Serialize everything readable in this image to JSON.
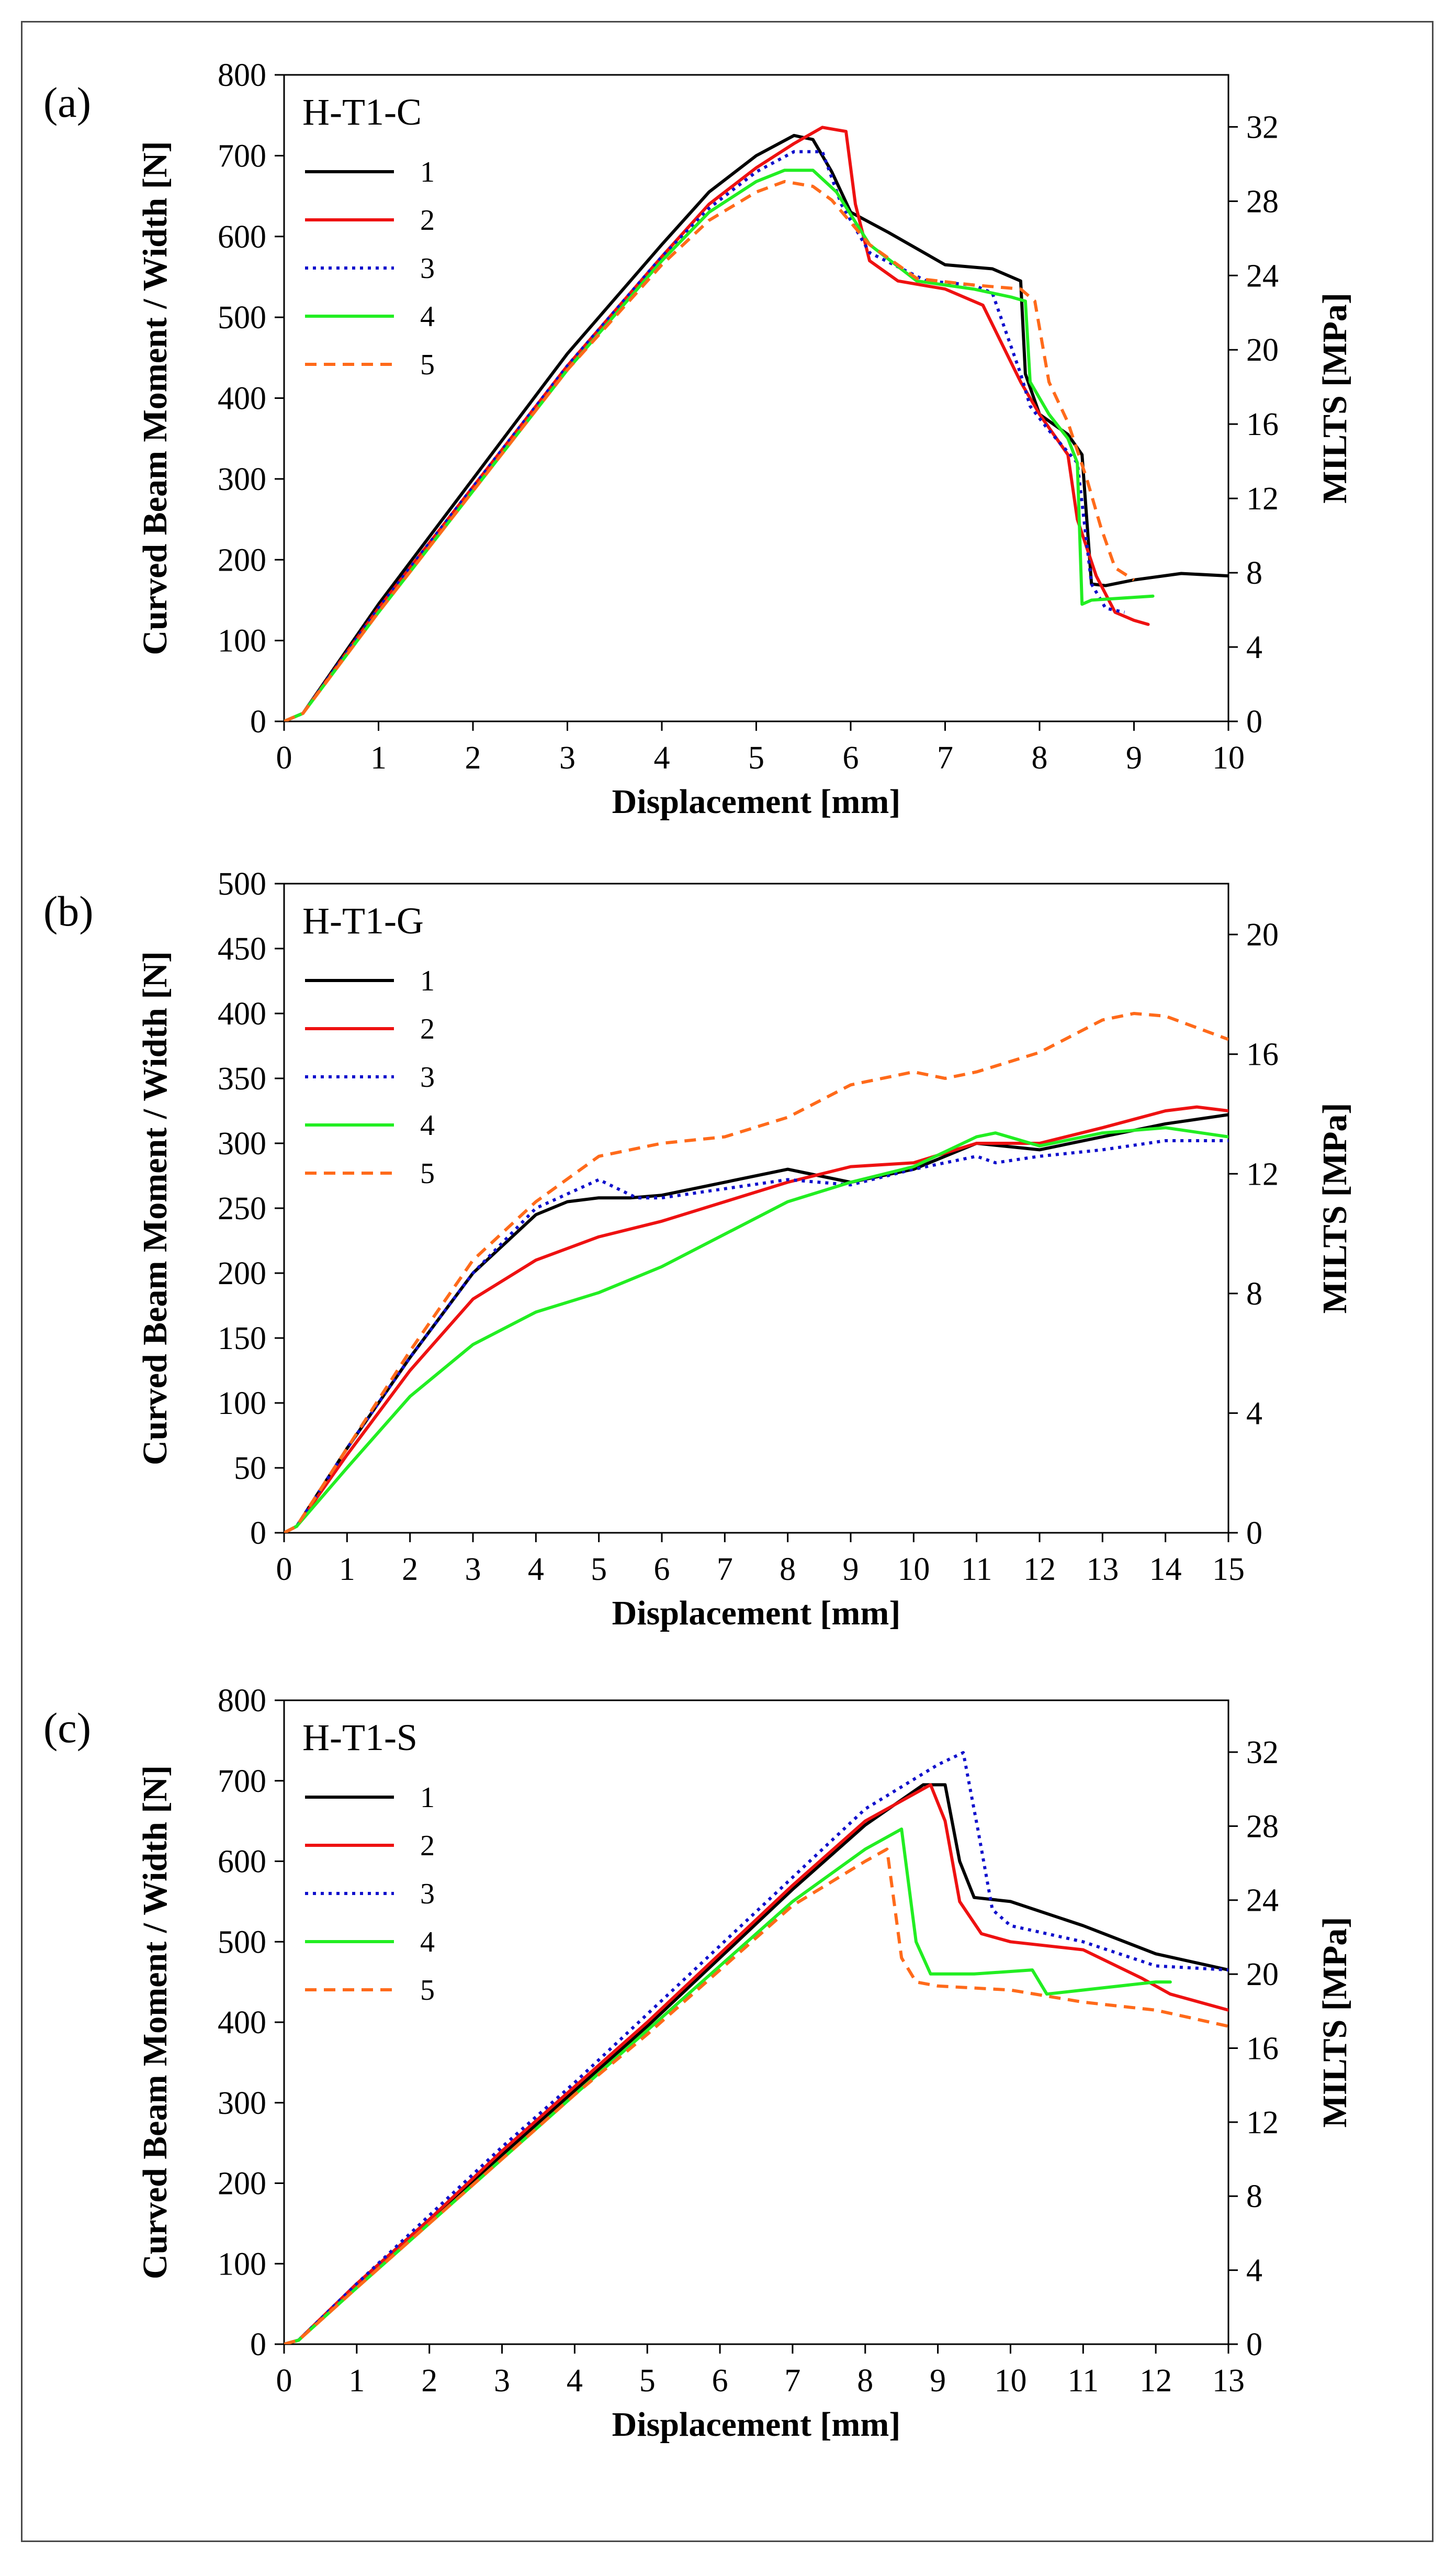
{
  "chart_data": [
    {
      "type": "line",
      "panel_label": "(a)",
      "title": "H-T1-C",
      "xlabel": "Displacement [mm]",
      "ylabel": "Curved Beam Moment / Width [N]",
      "y2label": "MILTS [MPa]",
      "xlim": [
        0,
        10
      ],
      "ylim": [
        0,
        800
      ],
      "y2lim": [
        0,
        34.8
      ],
      "xticks": [
        0,
        1,
        2,
        3,
        4,
        5,
        6,
        7,
        8,
        9,
        10
      ],
      "yticks": [
        0,
        100,
        200,
        300,
        400,
        500,
        600,
        700,
        800
      ],
      "y2ticks": [
        0,
        4,
        8,
        12,
        16,
        20,
        24,
        28,
        32
      ],
      "legend_position": "upper-left",
      "series": [
        {
          "name": "1",
          "color": "#000000",
          "dash": "solid",
          "x": [
            0,
            0.1,
            0.2,
            1,
            2,
            3,
            4,
            4.5,
            5,
            5.4,
            5.6,
            5.8,
            6,
            6.4,
            7,
            7.5,
            7.8,
            7.85,
            8,
            8.3,
            8.45,
            8.55,
            8.7,
            9,
            9.5,
            10
          ],
          "y": [
            0,
            5,
            10,
            145,
            300,
            455,
            590,
            655,
            700,
            725,
            720,
            680,
            630,
            605,
            565,
            560,
            545,
            430,
            380,
            355,
            330,
            170,
            168,
            175,
            183,
            180
          ]
        },
        {
          "name": "2",
          "color": "#ee1111",
          "dash": "solid",
          "x": [
            0,
            0.1,
            0.2,
            1,
            2,
            3,
            4,
            4.5,
            5,
            5.4,
            5.7,
            5.95,
            6.05,
            6.2,
            6.5,
            7,
            7.4,
            7.8,
            8,
            8.3,
            8.4,
            8.6,
            8.8,
            9,
            9.15
          ],
          "y": [
            0,
            5,
            10,
            140,
            290,
            440,
            575,
            640,
            685,
            715,
            735,
            730,
            640,
            570,
            545,
            535,
            515,
            420,
            380,
            330,
            250,
            180,
            135,
            125,
            120
          ]
        },
        {
          "name": "3",
          "color": "#1111cc",
          "dash": "dot",
          "x": [
            0,
            0.1,
            0.2,
            1,
            2,
            3,
            4,
            4.5,
            5,
            5.4,
            5.7,
            5.9,
            6.2,
            6.8,
            7.3,
            7.5,
            7.65,
            7.8,
            7.9,
            8.1,
            8.4,
            8.55,
            8.7,
            8.9
          ],
          "y": [
            0,
            5,
            10,
            140,
            290,
            440,
            575,
            635,
            680,
            705,
            705,
            640,
            580,
            545,
            540,
            530,
            480,
            430,
            390,
            360,
            320,
            170,
            140,
            135
          ]
        },
        {
          "name": "4",
          "color": "#22ee22",
          "dash": "solid",
          "x": [
            0,
            0.1,
            0.2,
            1,
            2,
            3,
            4,
            4.5,
            5,
            5.3,
            5.6,
            5.85,
            6.2,
            6.7,
            7.3,
            7.7,
            7.85,
            7.9,
            8.1,
            8.3,
            8.4,
            8.45,
            8.55,
            9.2
          ],
          "y": [
            0,
            5,
            10,
            135,
            285,
            435,
            570,
            630,
            668,
            682,
            682,
            655,
            590,
            545,
            535,
            525,
            520,
            420,
            380,
            350,
            320,
            145,
            150,
            155
          ]
        },
        {
          "name": "5",
          "color": "#ff6a1a",
          "dash": "dash",
          "x": [
            0,
            0.1,
            0.2,
            1,
            2,
            3,
            4,
            4.5,
            5,
            5.3,
            5.6,
            5.8,
            6.2,
            6.7,
            7.3,
            7.8,
            7.95,
            8.1,
            8.3,
            8.5,
            8.65,
            8.8,
            9
          ],
          "y": [
            0,
            5,
            10,
            135,
            285,
            435,
            565,
            620,
            655,
            668,
            662,
            645,
            590,
            548,
            540,
            535,
            520,
            420,
            370,
            300,
            240,
            190,
            175
          ]
        }
      ]
    },
    {
      "type": "line",
      "panel_label": "(b)",
      "title": "H-T1-G",
      "xlabel": "Displacement [mm]",
      "ylabel": "Curved Beam Moment / Width [N]",
      "y2label": "MILTS [MPa]",
      "xlim": [
        0,
        15
      ],
      "ylim": [
        0,
        500
      ],
      "y2lim": [
        0,
        21.7
      ],
      "xticks": [
        0,
        1,
        2,
        3,
        4,
        5,
        6,
        7,
        8,
        9,
        10,
        11,
        12,
        13,
        14,
        15
      ],
      "yticks": [
        0,
        50,
        100,
        150,
        200,
        250,
        300,
        350,
        400,
        450,
        500
      ],
      "y2ticks": [
        0,
        4,
        8,
        12,
        16,
        20
      ],
      "legend_position": "upper-left",
      "series": [
        {
          "name": "1",
          "color": "#000000",
          "dash": "solid",
          "x": [
            0,
            0.2,
            1,
            2,
            3,
            4,
            4.5,
            5,
            5.5,
            6,
            7,
            8,
            8.5,
            9,
            10,
            11,
            12,
            13,
            14,
            15
          ],
          "y": [
            0,
            5,
            65,
            135,
            200,
            245,
            255,
            258,
            258,
            260,
            270,
            280,
            275,
            270,
            280,
            300,
            295,
            305,
            315,
            322
          ]
        },
        {
          "name": "2",
          "color": "#ee1111",
          "dash": "solid",
          "x": [
            0,
            0.2,
            1,
            2,
            3,
            4,
            5,
            6,
            7,
            8,
            9,
            10,
            11,
            11.5,
            12,
            13,
            14,
            14.5,
            15
          ],
          "y": [
            0,
            5,
            60,
            125,
            180,
            210,
            228,
            240,
            255,
            270,
            282,
            285,
            300,
            300,
            300,
            312,
            325,
            328,
            325
          ]
        },
        {
          "name": "3",
          "color": "#1111cc",
          "dash": "dot",
          "x": [
            0,
            0.2,
            1,
            2,
            3,
            4,
            5,
            5.6,
            6,
            7,
            8,
            9,
            10,
            11,
            11.3,
            12,
            13,
            14,
            15
          ],
          "y": [
            0,
            5,
            65,
            135,
            200,
            250,
            272,
            258,
            258,
            265,
            272,
            268,
            280,
            290,
            285,
            290,
            295,
            302,
            302
          ]
        },
        {
          "name": "4",
          "color": "#22ee22",
          "dash": "solid",
          "x": [
            0,
            0.2,
            1,
            2,
            3,
            4,
            5,
            6,
            7,
            8,
            9,
            10,
            11,
            11.3,
            12,
            13,
            14,
            15
          ],
          "y": [
            0,
            5,
            50,
            105,
            145,
            170,
            185,
            205,
            230,
            255,
            270,
            282,
            305,
            308,
            298,
            308,
            312,
            305
          ]
        },
        {
          "name": "5",
          "color": "#ff6a1a",
          "dash": "dash",
          "x": [
            0,
            0.2,
            1,
            2,
            3,
            4,
            5,
            6,
            7,
            8,
            9,
            10,
            10.5,
            11,
            12,
            13,
            13.5,
            14,
            15
          ],
          "y": [
            0,
            5,
            65,
            140,
            210,
            255,
            290,
            300,
            305,
            320,
            345,
            355,
            350,
            355,
            370,
            395,
            400,
            398,
            380
          ]
        }
      ]
    },
    {
      "type": "line",
      "panel_label": "(c)",
      "title": "H-T1-S",
      "xlabel": "Displacement [mm]",
      "ylabel": "Curved Beam Moment / Width [N]",
      "y2label": "MILTS [MPa]",
      "xlim": [
        0,
        13
      ],
      "ylim": [
        0,
        800
      ],
      "y2lim": [
        0,
        34.8
      ],
      "xticks": [
        0,
        1,
        2,
        3,
        4,
        5,
        6,
        7,
        8,
        9,
        10,
        11,
        12,
        13
      ],
      "yticks": [
        0,
        100,
        200,
        300,
        400,
        500,
        600,
        700,
        800
      ],
      "y2ticks": [
        0,
        4,
        8,
        12,
        16,
        20,
        24,
        28,
        32
      ],
      "legend_position": "upper-left",
      "series": [
        {
          "name": "1",
          "color": "#000000",
          "dash": "solid",
          "x": [
            0,
            0.2,
            1,
            2,
            3,
            4,
            5,
            6,
            7,
            8,
            8.8,
            9.1,
            9.3,
            9.5,
            10,
            11,
            12,
            13
          ],
          "y": [
            0,
            5,
            75,
            155,
            235,
            315,
            395,
            480,
            565,
            645,
            695,
            695,
            600,
            555,
            550,
            520,
            485,
            465
          ]
        },
        {
          "name": "2",
          "color": "#ee1111",
          "dash": "solid",
          "x": [
            0,
            0.2,
            1,
            2,
            3,
            4,
            5,
            6,
            7,
            8,
            8.9,
            9.1,
            9.3,
            9.6,
            10,
            11,
            11.8,
            12.2,
            13
          ],
          "y": [
            0,
            5,
            75,
            155,
            240,
            320,
            400,
            485,
            570,
            650,
            695,
            650,
            550,
            510,
            500,
            490,
            455,
            435,
            415
          ]
        },
        {
          "name": "3",
          "color": "#1111cc",
          "dash": "dot",
          "x": [
            0,
            0.2,
            1,
            2,
            3,
            4,
            5,
            6,
            7,
            8,
            9,
            9.35,
            9.55,
            9.75,
            10,
            11,
            12,
            13
          ],
          "y": [
            0,
            5,
            75,
            160,
            245,
            325,
            410,
            495,
            580,
            665,
            720,
            735,
            640,
            540,
            520,
            500,
            470,
            465
          ]
        },
        {
          "name": "4",
          "color": "#22ee22",
          "dash": "solid",
          "x": [
            0,
            0.2,
            1,
            2,
            3,
            4,
            5,
            6,
            7,
            8,
            8.5,
            8.7,
            8.9,
            9.5,
            10.3,
            10.5,
            11,
            12,
            12.2
          ],
          "y": [
            0,
            5,
            70,
            150,
            230,
            310,
            390,
            470,
            550,
            615,
            640,
            500,
            460,
            460,
            465,
            435,
            440,
            450,
            450
          ]
        },
        {
          "name": "5",
          "color": "#ff6a1a",
          "dash": "dash",
          "x": [
            0,
            0.2,
            1,
            2,
            3,
            4,
            5,
            6,
            7,
            8,
            8.3,
            8.5,
            8.7,
            9,
            10,
            11,
            12,
            13
          ],
          "y": [
            0,
            5,
            70,
            150,
            230,
            310,
            385,
            465,
            545,
            600,
            615,
            480,
            450,
            445,
            440,
            425,
            415,
            395
          ]
        }
      ]
    }
  ]
}
